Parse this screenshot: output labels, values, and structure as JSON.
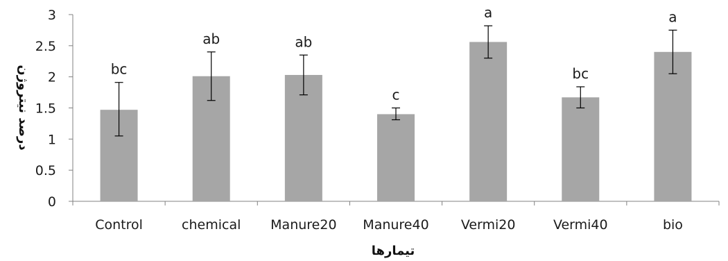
{
  "chart_data": {
    "type": "bar",
    "title": "",
    "xlabel": "تیمارها",
    "ylabel": "درصد نیتروژن",
    "categories": [
      "Control",
      "chemical",
      "Manure20",
      "Manure40",
      "Vermi20",
      "Vermi40",
      "bio"
    ],
    "values": [
      1.47,
      2.01,
      2.03,
      1.4,
      2.56,
      1.67,
      2.4
    ],
    "error_low": [
      1.05,
      1.62,
      1.71,
      1.31,
      2.3,
      1.5,
      2.05
    ],
    "error_high": [
      1.91,
      2.4,
      2.35,
      1.5,
      2.82,
      1.84,
      2.75
    ],
    "significance_labels": [
      "bc",
      "ab",
      "ab",
      "c",
      "a",
      "bc",
      "a"
    ],
    "ylim": [
      0,
      3
    ],
    "yticks": [
      "0",
      "0.5",
      "1",
      "1.5",
      "2",
      "2.5",
      "3"
    ],
    "grid": false,
    "legend": "none",
    "colors": {
      "bar": "#a6a6a6",
      "axis": "#808080",
      "error_bar": "#000000"
    }
  }
}
